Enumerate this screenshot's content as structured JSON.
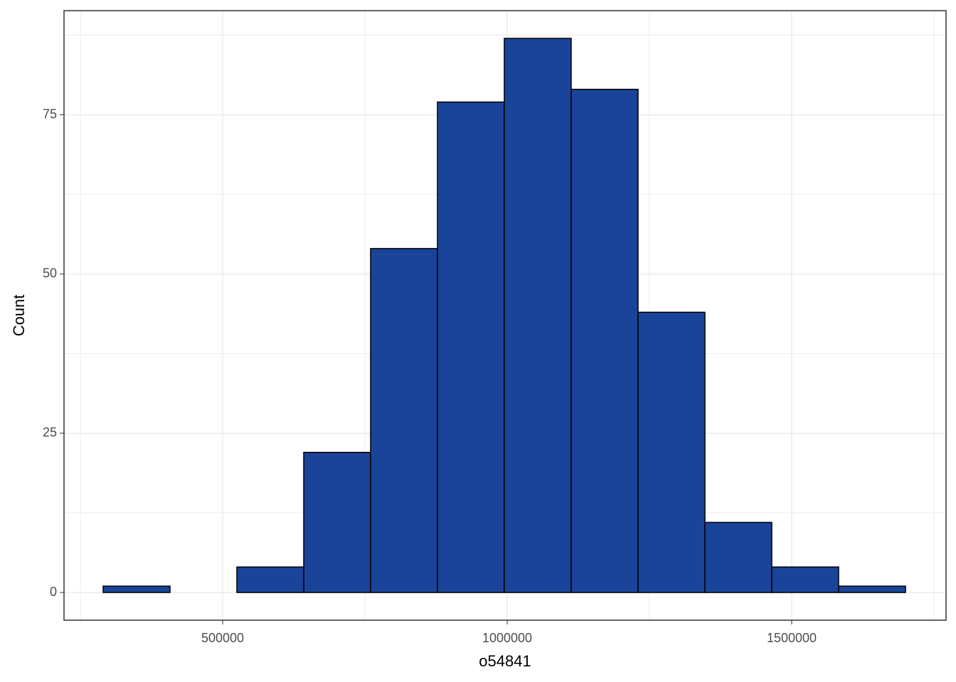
{
  "chart_data": {
    "type": "histogram",
    "x_label": "o54841",
    "y_label": "Count",
    "bins": [
      290000,
      407500,
      525000,
      642500,
      760000,
      877500,
      995000,
      1112500,
      1230000,
      1347500,
      1465000,
      1582500,
      1700000
    ],
    "counts": [
      1,
      0,
      4,
      22,
      54,
      77,
      87,
      79,
      44,
      11,
      4,
      1
    ],
    "color": "#1a4499",
    "edge_color": "#000000",
    "xlim": [
      221250,
      1771250
    ],
    "ylim": [
      -4.35,
      91.35
    ],
    "xticks": [
      500000,
      1000000,
      1500000
    ],
    "yticks": [
      0,
      25,
      50,
      75
    ],
    "x_minor_ticks": [
      250000,
      750000,
      1250000,
      1750000
    ],
    "y_minor_ticks": [
      12.5,
      37.5,
      62.5,
      87.5
    ],
    "grid": true
  }
}
